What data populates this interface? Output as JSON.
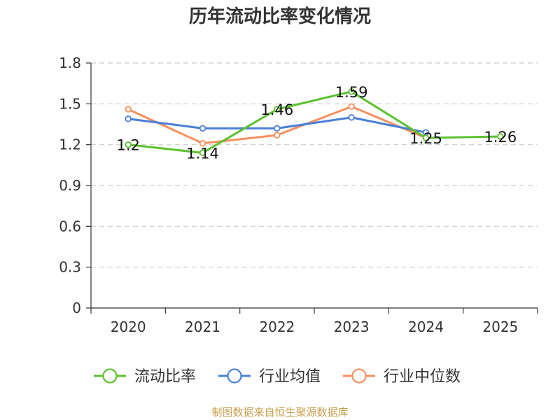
{
  "chart_data": {
    "type": "line",
    "title": "历年流动比率变化情况",
    "categories": [
      "2020",
      "2021",
      "2022",
      "2023",
      "2024",
      "2025"
    ],
    "ylim": [
      0,
      1.8
    ],
    "yticks": [
      "0",
      "0.3",
      "0.6",
      "0.9",
      "1.2",
      "1.5",
      "1.8"
    ],
    "grid": true,
    "legend_position": "bottom",
    "series": [
      {
        "name": "流动比率",
        "color": "#5cc12f",
        "values": [
          1.2,
          1.14,
          1.46,
          1.59,
          1.25,
          1.26
        ],
        "labels": [
          "1.2",
          "1.14",
          "1.46",
          "1.59",
          "1.25",
          "1.26"
        ]
      },
      {
        "name": "行业均值",
        "color": "#4a7fd8",
        "values": [
          1.39,
          1.32,
          1.32,
          1.4,
          1.29,
          null
        ]
      },
      {
        "name": "行业中位数",
        "color": "#f5905e",
        "values": [
          1.46,
          1.21,
          1.27,
          1.48,
          1.25,
          null
        ]
      }
    ]
  },
  "footer": {
    "source": "制图数据来自恒生聚源数据库"
  }
}
